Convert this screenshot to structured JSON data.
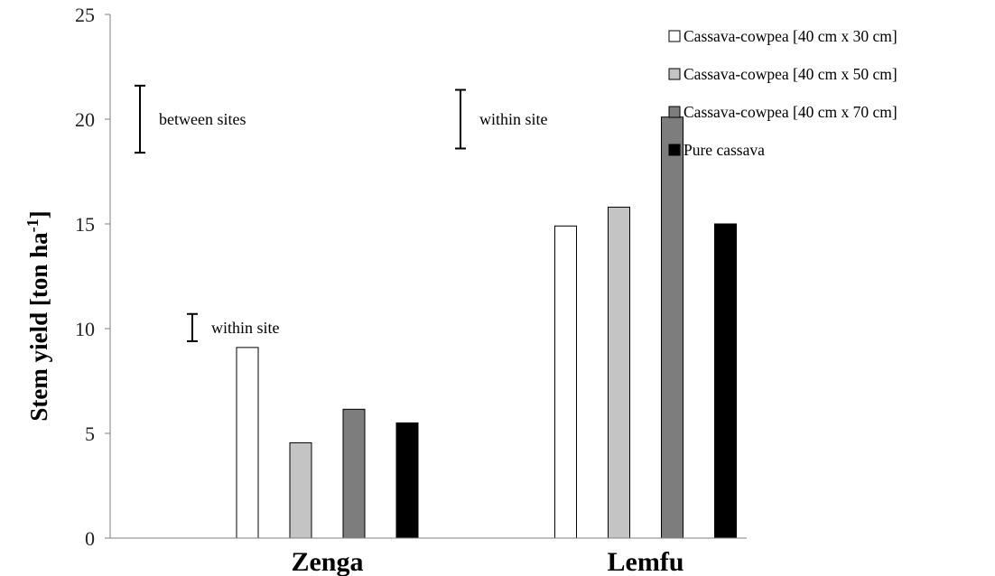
{
  "chart_data": {
    "type": "bar",
    "title": "",
    "xlabel": "",
    "ylabel": "Stem yield [ton ha",
    "ylabel_superscript": "-1",
    "ylabel_suffix": "]",
    "ylim": [
      0,
      25
    ],
    "yticks": [
      0,
      5,
      10,
      15,
      20,
      25
    ],
    "grid": false,
    "legend_position": "top-right",
    "categories": [
      "Zenga",
      "Lemfu"
    ],
    "series": [
      {
        "name": "Cassava-cowpea [40 cm x 30 cm]",
        "color": "#ffffff",
        "values": [
          9.1,
          14.9
        ]
      },
      {
        "name": "Cassava-cowpea [40 cm x 50 cm]",
        "color": "#c4c4c4",
        "values": [
          4.55,
          15.8
        ]
      },
      {
        "name": "Cassava-cowpea [40 cm x 70 cm]",
        "color": "#7d7d7d",
        "values": [
          6.15,
          20.1
        ]
      },
      {
        "name": "Pure cassava",
        "color": "#000000",
        "values": [
          5.5,
          15.0
        ]
      }
    ],
    "annotations": [
      {
        "label": "between sites",
        "bar_low": 18.4,
        "bar_high": 21.6
      },
      {
        "label": "within site",
        "bar_low": 9.4,
        "bar_high": 10.7
      },
      {
        "label": "within site",
        "bar_low": 18.6,
        "bar_high": 21.4
      }
    ]
  }
}
